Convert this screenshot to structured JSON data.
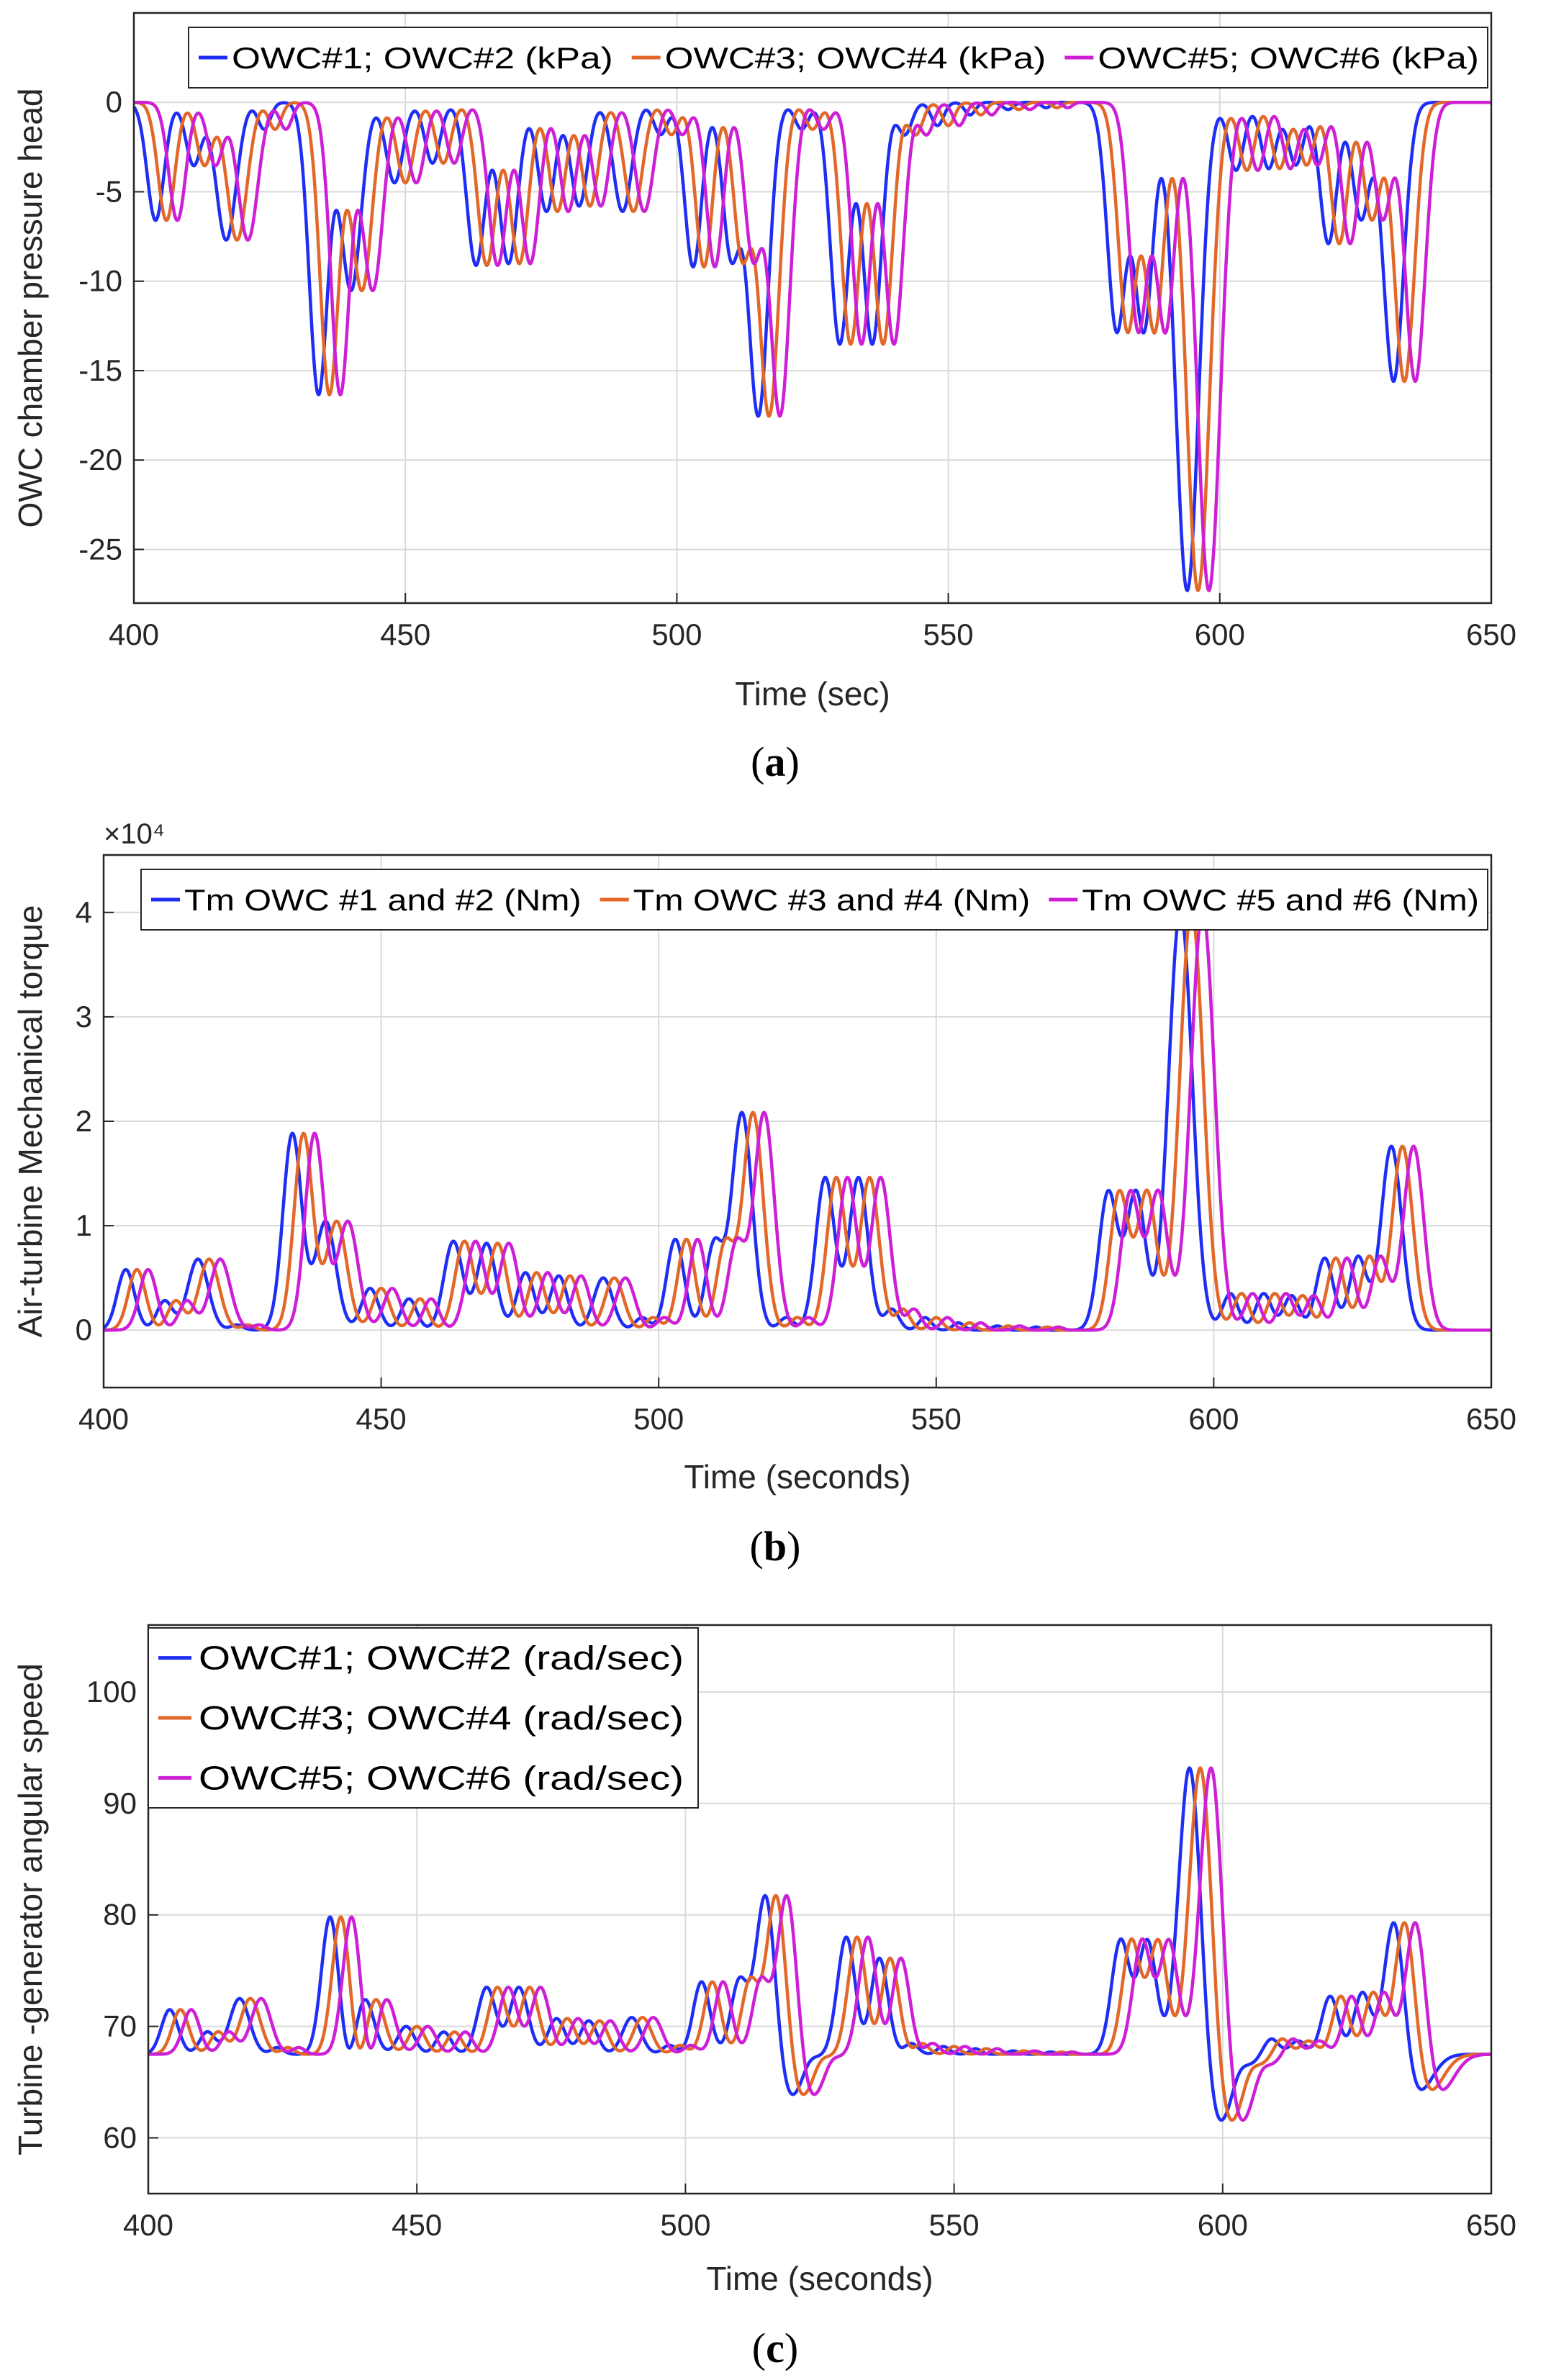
{
  "colors": {
    "series1": "#1f2ef5",
    "series2": "#e2682a",
    "series3": "#cc1fd6",
    "grid": "#d9d9d9",
    "axis": "#262626"
  },
  "chart_data": [
    {
      "type": "line",
      "panel_label": "a",
      "xlabel": "Time (sec)",
      "ylabel": "OWC chamber pressure head",
      "xlim": [
        400,
        650
      ],
      "ylim": [
        -28,
        5
      ],
      "xticks": [
        400,
        450,
        500,
        550,
        600,
        650
      ],
      "yticks": [
        0,
        -5,
        -10,
        -15,
        -20,
        -25
      ],
      "exponent_label": "",
      "legend": {
        "placement": "top",
        "orientation": "horizontal"
      },
      "baseline": 0,
      "series": [
        {
          "name": "OWC#1; OWC#2 (kPa)",
          "color": "#1f2ef5",
          "lag": 0
        },
        {
          "name": "OWC#3; OWC#4 (kPa)",
          "color": "#e2682a",
          "lag": 2
        },
        {
          "name": "OWC#5; OWC#6 (kPa)",
          "color": "#cc1fd6",
          "lag": 4
        }
      ],
      "events": [
        {
          "t": 404,
          "a": -6.6,
          "w": 2.2
        },
        {
          "t": 411,
          "a": -3.5,
          "w": 2
        },
        {
          "t": 417,
          "a": -7.7,
          "w": 2.6
        },
        {
          "t": 424,
          "a": -1.5,
          "w": 1.6
        },
        {
          "t": 434,
          "a": -16.3,
          "w": 2.4
        },
        {
          "t": 440,
          "a": -10.5,
          "w": 2.6
        },
        {
          "t": 448,
          "a": -4.5,
          "w": 2.2
        },
        {
          "t": 455,
          "a": -3.4,
          "w": 2
        },
        {
          "t": 463,
          "a": -9.1,
          "w": 2.4
        },
        {
          "t": 469,
          "a": -9,
          "w": 2.4
        },
        {
          "t": 476,
          "a": -6.1,
          "w": 2.2
        },
        {
          "t": 482,
          "a": -5.8,
          "w": 2.2
        },
        {
          "t": 490,
          "a": -6.1,
          "w": 2.4
        },
        {
          "t": 497,
          "a": -1.8,
          "w": 1.8
        },
        {
          "t": 503,
          "a": -9.2,
          "w": 2.2
        },
        {
          "t": 510,
          "a": -8.5,
          "w": 2.2
        },
        {
          "t": 515,
          "a": -17.5,
          "w": 2.6
        },
        {
          "t": 523,
          "a": -1.5,
          "w": 1.8
        },
        {
          "t": 530,
          "a": -13.5,
          "w": 2.4
        },
        {
          "t": 536,
          "a": -13.5,
          "w": 2.4
        },
        {
          "t": 542,
          "a": -1.8,
          "w": 1.8
        },
        {
          "t": 548,
          "a": -1.3,
          "w": 1.6
        },
        {
          "t": 554,
          "a": -0.7,
          "w": 1.4
        },
        {
          "t": 561,
          "a": -0.4,
          "w": 1.4
        },
        {
          "t": 568,
          "a": -0.3,
          "w": 1.2
        },
        {
          "t": 581,
          "a": -12.7,
          "w": 2.4
        },
        {
          "t": 586,
          "a": -12.7,
          "w": 2.4
        },
        {
          "t": 594,
          "a": -27.3,
          "w": 3
        },
        {
          "t": 603,
          "a": -3.8,
          "w": 2
        },
        {
          "t": 609,
          "a": -3.7,
          "w": 2
        },
        {
          "t": 614,
          "a": -3.5,
          "w": 2
        },
        {
          "t": 620,
          "a": -7.9,
          "w": 2.2
        },
        {
          "t": 626,
          "a": -6.5,
          "w": 2.2
        },
        {
          "t": 632,
          "a": -15.6,
          "w": 2.6
        }
      ]
    },
    {
      "type": "line",
      "panel_label": "b",
      "xlabel": "Time (seconds)",
      "ylabel": "Air-turbine Mechanical torque",
      "xlim": [
        400,
        650
      ],
      "ylim": [
        -0.55,
        4.55
      ],
      "xticks": [
        400,
        450,
        500,
        550,
        600,
        650
      ],
      "yticks": [
        0,
        1,
        2,
        3,
        4
      ],
      "exponent_label": "×10⁴",
      "legend": {
        "placement": "top",
        "orientation": "horizontal"
      },
      "baseline": 0,
      "series": [
        {
          "name": "Tm OWC #1 and #2 (Nm)",
          "color": "#1f2ef5",
          "lag": 0
        },
        {
          "name": "Tm OWC #3 and #4 (Nm)",
          "color": "#e2682a",
          "lag": 2
        },
        {
          "name": "Tm OWC #5 and #6 (Nm)",
          "color": "#cc1fd6",
          "lag": 4
        }
      ],
      "events": [
        {
          "t": 404,
          "a": 0.58,
          "w": 2.2
        },
        {
          "t": 411,
          "a": 0.28,
          "w": 2
        },
        {
          "t": 417,
          "a": 0.68,
          "w": 2.6
        },
        {
          "t": 424,
          "a": 0.05,
          "w": 1.6
        },
        {
          "t": 434,
          "a": 1.88,
          "w": 2.4
        },
        {
          "t": 440,
          "a": 1.04,
          "w": 2.6
        },
        {
          "t": 448,
          "a": 0.4,
          "w": 2.2
        },
        {
          "t": 455,
          "a": 0.3,
          "w": 2
        },
        {
          "t": 463,
          "a": 0.85,
          "w": 2.4
        },
        {
          "t": 469,
          "a": 0.83,
          "w": 2.4
        },
        {
          "t": 476,
          "a": 0.55,
          "w": 2.2
        },
        {
          "t": 482,
          "a": 0.52,
          "w": 2.2
        },
        {
          "t": 490,
          "a": 0.5,
          "w": 2.4
        },
        {
          "t": 497,
          "a": 0.12,
          "w": 1.8
        },
        {
          "t": 503,
          "a": 0.87,
          "w": 2.2
        },
        {
          "t": 510,
          "a": 0.82,
          "w": 2.2
        },
        {
          "t": 515,
          "a": 2.08,
          "w": 2.6
        },
        {
          "t": 523,
          "a": 0.12,
          "w": 1.8
        },
        {
          "t": 530,
          "a": 1.46,
          "w": 2.4
        },
        {
          "t": 536,
          "a": 1.46,
          "w": 2.4
        },
        {
          "t": 542,
          "a": 0.2,
          "w": 1.8
        },
        {
          "t": 548,
          "a": 0.12,
          "w": 1.6
        },
        {
          "t": 554,
          "a": 0.07,
          "w": 1.4
        },
        {
          "t": 561,
          "a": 0.04,
          "w": 1.4
        },
        {
          "t": 568,
          "a": 0.03,
          "w": 1.2
        },
        {
          "t": 581,
          "a": 1.32,
          "w": 2.4
        },
        {
          "t": 586,
          "a": 1.32,
          "w": 2.4
        },
        {
          "t": 594,
          "a": 4.02,
          "w": 3
        },
        {
          "t": 603,
          "a": 0.35,
          "w": 2
        },
        {
          "t": 609,
          "a": 0.35,
          "w": 2
        },
        {
          "t": 614,
          "a": 0.33,
          "w": 2
        },
        {
          "t": 620,
          "a": 0.69,
          "w": 2.2
        },
        {
          "t": 626,
          "a": 0.7,
          "w": 2.2
        },
        {
          "t": 632,
          "a": 1.76,
          "w": 2.6
        }
      ]
    },
    {
      "type": "line",
      "panel_label": "c",
      "xlabel": "Time (seconds)",
      "ylabel": "Turbine -generator angular speed",
      "xlim": [
        400,
        650
      ],
      "ylim": [
        55,
        106
      ],
      "xticks": [
        400,
        450,
        500,
        550,
        600,
        650
      ],
      "yticks": [
        60,
        70,
        80,
        90,
        100
      ],
      "exponent_label": "",
      "legend": {
        "placement": "top-left",
        "orientation": "vertical"
      },
      "baseline": 67.5,
      "series": [
        {
          "name": "OWC#1; OWC#2 (rad/sec)",
          "color": "#1f2ef5",
          "lag": 0
        },
        {
          "name": "OWC#3; OWC#4 (rad/sec)",
          "color": "#e2682a",
          "lag": 2
        },
        {
          "name": "OWC#5; OWC#6 (rad/sec)",
          "color": "#cc1fd6",
          "lag": 4
        }
      ],
      "events": [
        {
          "t": 404,
          "a": 4,
          "w": 2.2
        },
        {
          "t": 411,
          "a": 2,
          "w": 2
        },
        {
          "t": 417,
          "a": 5,
          "w": 2.6
        },
        {
          "t": 424,
          "a": 0.6,
          "w": 1.6
        },
        {
          "t": 434,
          "a": 14.5,
          "w": 2.4
        },
        {
          "t": 440,
          "a": 7,
          "w": 2.6
        },
        {
          "t": 448,
          "a": 2.5,
          "w": 2.2
        },
        {
          "t": 455,
          "a": 2,
          "w": 2
        },
        {
          "t": 463,
          "a": 6,
          "w": 2.4
        },
        {
          "t": 469,
          "a": 6,
          "w": 2.4
        },
        {
          "t": 476,
          "a": 3.2,
          "w": 2.2
        },
        {
          "t": 482,
          "a": 3,
          "w": 2.2
        },
        {
          "t": 490,
          "a": 3.3,
          "w": 2.4
        },
        {
          "t": 497,
          "a": 0.8,
          "w": 1.8
        },
        {
          "t": 503,
          "a": 6.5,
          "w": 2.2
        },
        {
          "t": 510,
          "a": 6.5,
          "w": 2.2
        },
        {
          "t": 515,
          "a": 15.7,
          "w": 2.6
        },
        {
          "t": 523,
          "a": 0.8,
          "w": 1.8
        },
        {
          "t": 530,
          "a": 10.8,
          "w": 2.4
        },
        {
          "t": 536,
          "a": 10.8,
          "w": 2.4
        },
        {
          "t": 542,
          "a": 1,
          "w": 1.8
        },
        {
          "t": 548,
          "a": 0.7,
          "w": 1.6
        },
        {
          "t": 554,
          "a": 0.5,
          "w": 1.4
        },
        {
          "t": 561,
          "a": 0.3,
          "w": 1.4
        },
        {
          "t": 568,
          "a": 0.2,
          "w": 1.2
        },
        {
          "t": 581,
          "a": 10.2,
          "w": 2.4
        },
        {
          "t": 586,
          "a": 10.2,
          "w": 2.4
        },
        {
          "t": 594,
          "a": 30,
          "w": 3
        },
        {
          "t": 603,
          "a": 1.5,
          "w": 2
        },
        {
          "t": 609,
          "a": 1.5,
          "w": 2
        },
        {
          "t": 614,
          "a": 1.2,
          "w": 2
        },
        {
          "t": 620,
          "a": 5.2,
          "w": 2.2
        },
        {
          "t": 626,
          "a": 5.5,
          "w": 2.2
        },
        {
          "t": 632,
          "a": 13.1,
          "w": 2.6
        }
      ],
      "dips": [
        {
          "t": 437,
          "a": -4,
          "w": 4
        },
        {
          "t": 519,
          "a": -4.3,
          "w": 4
        },
        {
          "t": 535,
          "a": -2.4,
          "w": 3.5
        },
        {
          "t": 598,
          "a": -7.5,
          "w": 5.5
        },
        {
          "t": 636,
          "a": -3.7,
          "w": 4
        }
      ]
    }
  ]
}
